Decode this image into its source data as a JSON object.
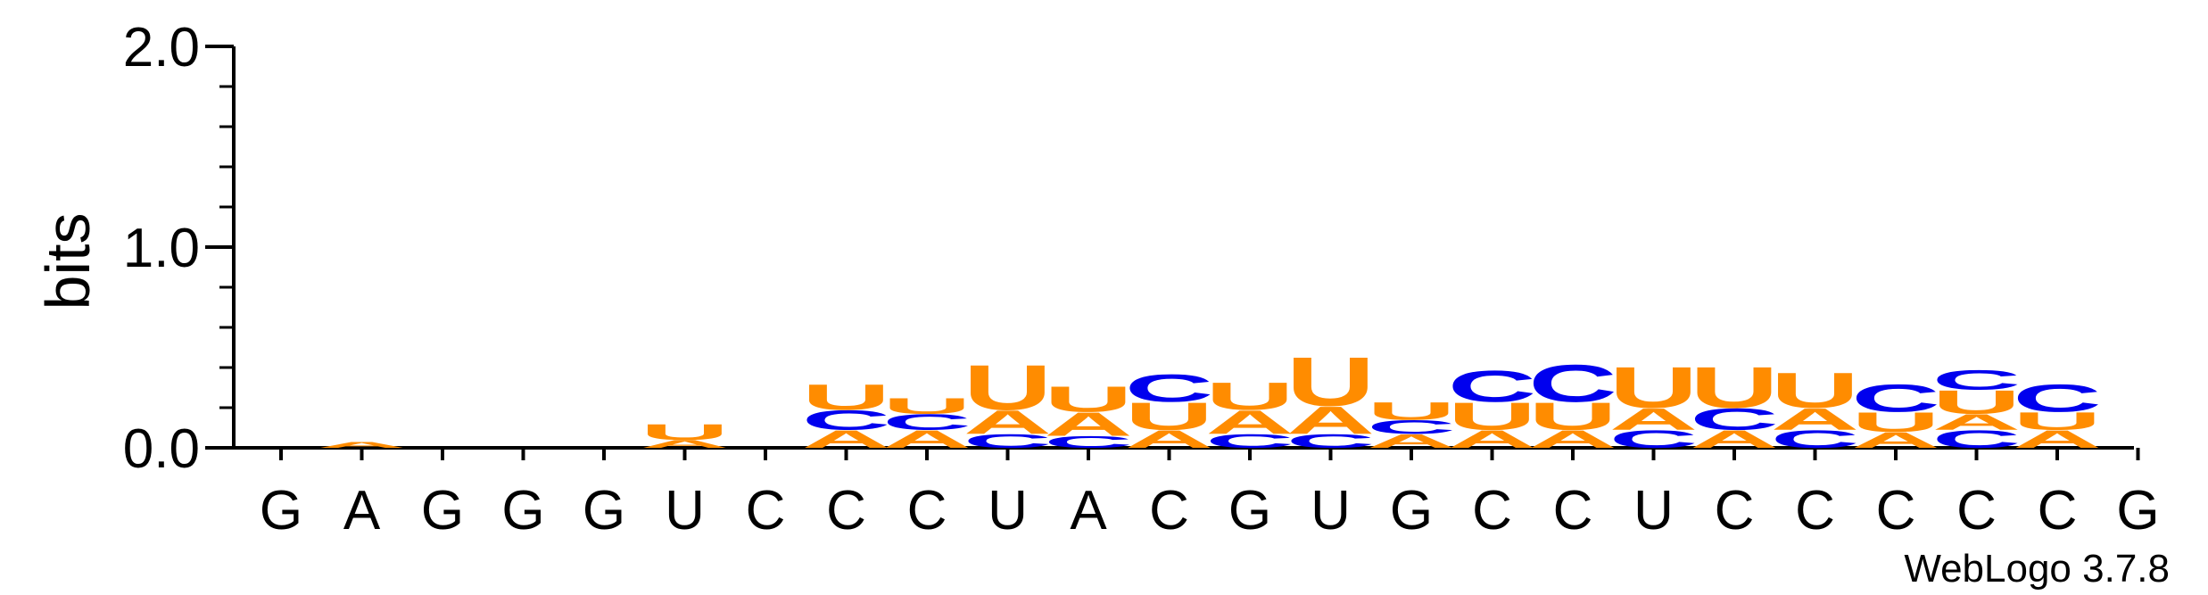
{
  "chart_data": {
    "type": "sequence-logo",
    "ylabel": "bits",
    "ylim": [
      0,
      2.0
    ],
    "yticks": [
      "0.0",
      "1.0",
      "2.0"
    ],
    "colors": {
      "A": "#ff8c00",
      "U": "#ff8c00",
      "C": "#0000ee",
      "G": "#ffa500"
    },
    "positions": [
      "G",
      "A",
      "G",
      "G",
      "G",
      "U",
      "C",
      "C",
      "C",
      "U",
      "A",
      "C",
      "G",
      "U",
      "G",
      "C",
      "C",
      "U",
      "C",
      "C",
      "C",
      "C",
      "C",
      "G"
    ],
    "stacks": [
      [],
      [
        [
          "A",
          0.03
        ]
      ],
      [],
      [],
      [],
      [
        [
          "A",
          0.04
        ],
        [
          "U",
          0.08
        ]
      ],
      [],
      [
        [
          "A",
          0.09
        ],
        [
          "C",
          0.1
        ],
        [
          "U",
          0.13
        ]
      ],
      [
        [
          "A",
          0.09
        ],
        [
          "C",
          0.08
        ],
        [
          "U",
          0.08
        ]
      ],
      [
        [
          "C",
          0.07
        ],
        [
          "A",
          0.12
        ],
        [
          "U",
          0.23
        ]
      ],
      [
        [
          "C",
          0.06
        ],
        [
          "A",
          0.12
        ],
        [
          "U",
          0.13
        ]
      ],
      [
        [
          "A",
          0.09
        ],
        [
          "U",
          0.14
        ],
        [
          "C",
          0.14
        ]
      ],
      [
        [
          "C",
          0.07
        ],
        [
          "A",
          0.12
        ],
        [
          "U",
          0.14
        ]
      ],
      [
        [
          "C",
          0.07
        ],
        [
          "A",
          0.14
        ],
        [
          "U",
          0.25
        ]
      ],
      [
        [
          "A",
          0.07
        ],
        [
          "C",
          0.07
        ],
        [
          "U",
          0.09
        ]
      ],
      [
        [
          "A",
          0.09
        ],
        [
          "U",
          0.14
        ],
        [
          "C",
          0.16
        ]
      ],
      [
        [
          "A",
          0.09
        ],
        [
          "U",
          0.14
        ],
        [
          "C",
          0.19
        ]
      ],
      [
        [
          "C",
          0.09
        ],
        [
          "A",
          0.11
        ],
        [
          "U",
          0.21
        ]
      ],
      [
        [
          "A",
          0.09
        ],
        [
          "C",
          0.11
        ],
        [
          "U",
          0.21
        ]
      ],
      [
        [
          "C",
          0.09
        ],
        [
          "A",
          0.11
        ],
        [
          "U",
          0.18
        ]
      ],
      [
        [
          "A",
          0.08
        ],
        [
          "U",
          0.1
        ],
        [
          "C",
          0.14
        ]
      ],
      [
        [
          "C",
          0.09
        ],
        [
          "A",
          0.08
        ],
        [
          "U",
          0.12
        ],
        [
          "C",
          0.1
        ]
      ],
      [
        [
          "A",
          0.09
        ],
        [
          "U",
          0.09
        ],
        [
          "C",
          0.14
        ]
      ],
      []
    ]
  },
  "credit": "WebLogo 3.7.8"
}
